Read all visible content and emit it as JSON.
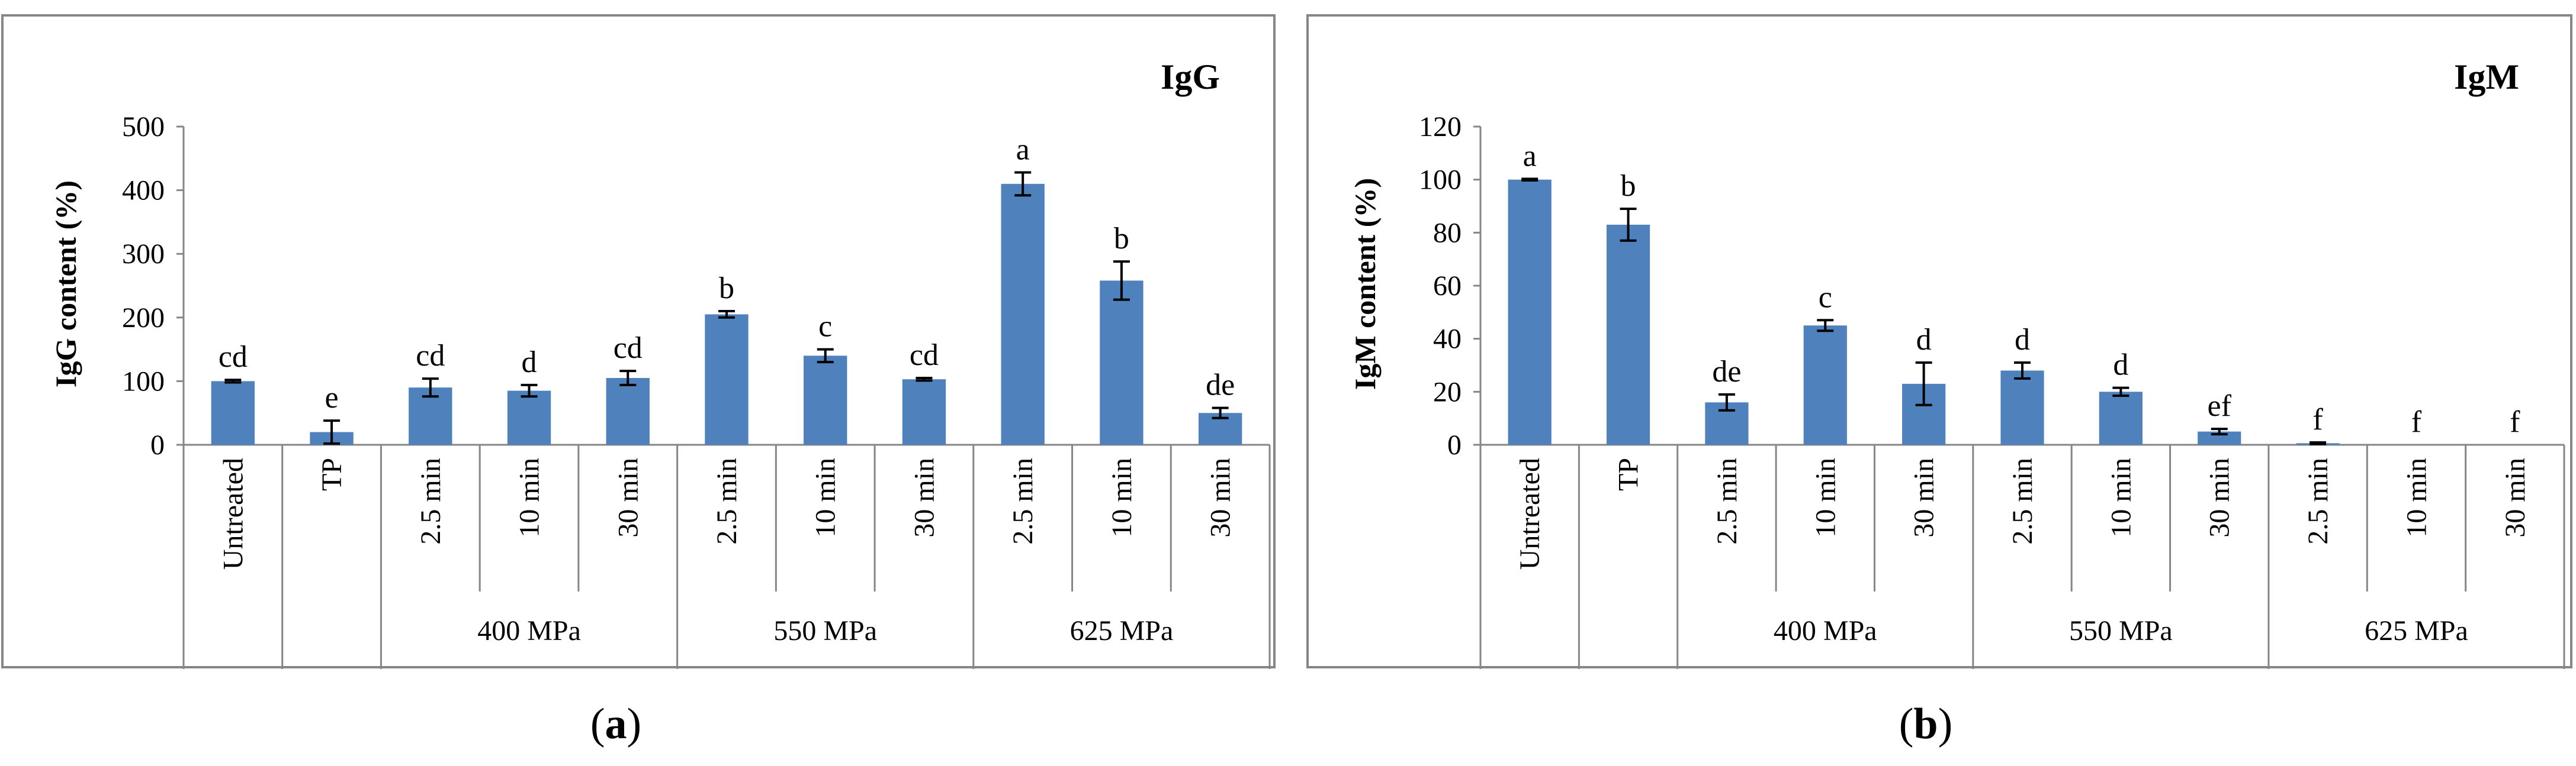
{
  "colors": {
    "bar": "#4f81bd",
    "axis": "#868686",
    "error": "#000000"
  },
  "chart_data": [
    {
      "type": "bar",
      "title": "IgG",
      "ylabel": "IgG content (%)",
      "ylim": [
        0,
        500
      ],
      "yticks": [
        0,
        100,
        200,
        300,
        400,
        500
      ],
      "categories": [
        "Untreated",
        "TP",
        "2.5 min",
        "10 min",
        "30 min",
        "2.5 min",
        "10 min",
        "30 min",
        "2.5 min",
        "10 min",
        "30 min"
      ],
      "groups": [
        {
          "label": "400 MPa",
          "start": 2,
          "end": 4
        },
        {
          "label": "550 MPa",
          "start": 5,
          "end": 7
        },
        {
          "label": "625 MPa",
          "start": 8,
          "end": 10
        }
      ],
      "values": [
        100,
        20,
        90,
        85,
        105,
        205,
        140,
        103,
        410,
        258,
        50
      ],
      "errors": [
        2,
        18,
        14,
        9,
        11,
        5,
        10,
        2,
        18,
        30,
        8
      ],
      "labels": [
        "cd",
        "e",
        "cd",
        "d",
        "cd",
        "b",
        "c",
        "cd",
        "a",
        "b",
        "de"
      ],
      "panel": {
        "open": "(",
        "letter": "a",
        "close": ")"
      }
    },
    {
      "type": "bar",
      "title": "IgM",
      "ylabel": "IgM content (%)",
      "ylim": [
        0,
        120
      ],
      "yticks": [
        0,
        20,
        40,
        60,
        80,
        100,
        120
      ],
      "categories": [
        "Untreated",
        "TP",
        "2.5 min",
        "10 min",
        "30 min",
        "2.5 min",
        "10 min",
        "30 min",
        "2.5 min",
        "10 min",
        "30 min"
      ],
      "groups": [
        {
          "label": "400 MPa",
          "start": 2,
          "end": 4
        },
        {
          "label": "550 MPa",
          "start": 5,
          "end": 7
        },
        {
          "label": "625 MPa",
          "start": 8,
          "end": 10
        }
      ],
      "values": [
        100,
        83,
        16,
        45,
        23,
        28,
        20,
        5,
        0.6,
        0,
        0
      ],
      "errors": [
        0.3,
        6,
        3,
        2,
        8,
        3,
        1.5,
        1,
        0.3,
        0,
        0
      ],
      "labels": [
        "a",
        "b",
        "de",
        "c",
        "d",
        "d",
        "d",
        "ef",
        "f",
        "f",
        "f"
      ],
      "panel": {
        "open": "(",
        "letter": "b",
        "close": ")"
      }
    }
  ]
}
